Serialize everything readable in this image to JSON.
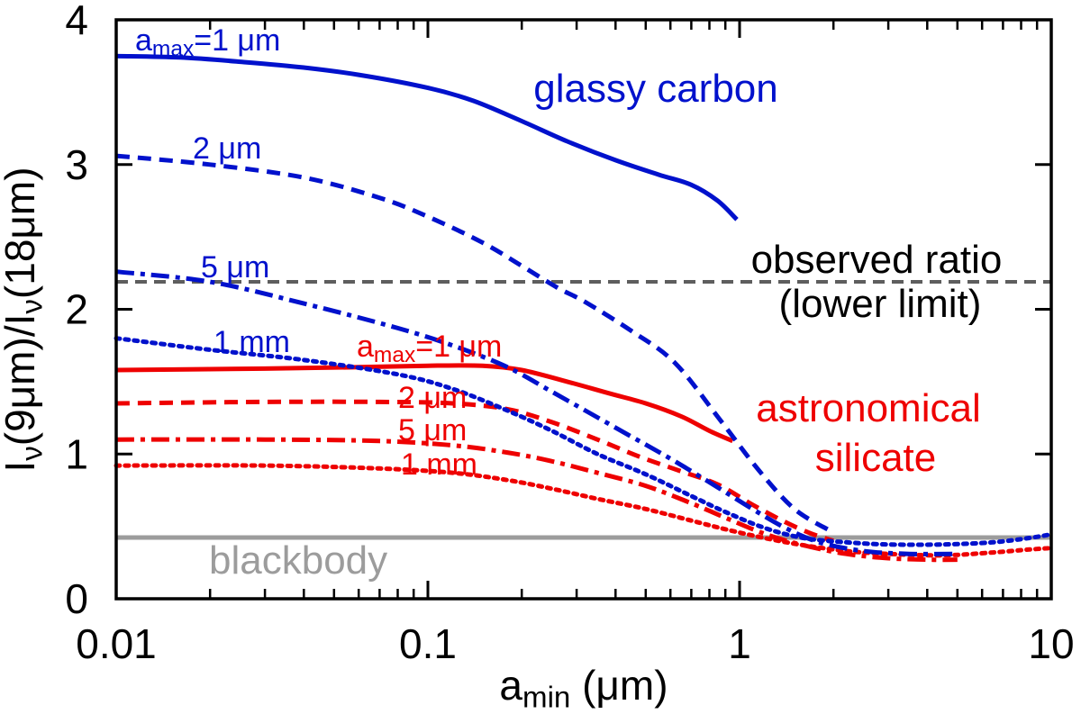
{
  "chart_data": {
    "type": "line",
    "title": "",
    "xlabel": "a_min (μm)",
    "ylabel": "I_ν(9μm)/I_ν(18μm)",
    "xlabel_segments": [
      {
        "t": "a"
      },
      {
        "t": "min",
        "sub": true
      },
      {
        "t": " (μm)"
      }
    ],
    "ylabel_segments": [
      {
        "t": "I"
      },
      {
        "t": "ν",
        "sub": true
      },
      {
        "t": "(9μm)/I"
      },
      {
        "t": "ν",
        "sub": true
      },
      {
        "t": "(18μm)"
      }
    ],
    "x_axis": {
      "scale": "log",
      "min": 0.01,
      "max": 10,
      "major_ticks": [
        0.01,
        0.1,
        1,
        10
      ],
      "major_tick_labels": [
        "0.01",
        "0.1",
        "1",
        "10"
      ],
      "minor_ticks_per_decade": [
        2,
        3,
        4,
        5,
        6,
        7,
        8,
        9
      ]
    },
    "y_axis": {
      "scale": "linear",
      "min": 0,
      "max": 4,
      "ticks": [
        0,
        1,
        2,
        3,
        4
      ],
      "tick_labels": [
        "0",
        "1",
        "2",
        "3",
        "4"
      ]
    },
    "grid": false,
    "legend_position": "inline-labels",
    "colors": {
      "glassy_carbon": "#0011cc",
      "astronomical_silicate": "#ee0000",
      "observed_line": "#5e5e5e",
      "blackbody_line": "#9c9c9c",
      "frame": "#000000",
      "text": "#000000"
    },
    "reference_lines": [
      {
        "id": "observed-ratio",
        "value": 2.19,
        "linestyle": "dashed",
        "color": "#5e5e5e",
        "label_lines": [
          "observed ratio",
          "(lower limit)"
        ],
        "label_color": "#000000"
      },
      {
        "id": "blackbody",
        "value": 0.423,
        "linestyle": "solid",
        "color": "#9c9c9c",
        "label_lines": [
          "blackbody"
        ],
        "label_color": "#9c9c9c"
      }
    ],
    "series": [
      {
        "id": "gc-amax-1um",
        "material": "glassy carbon",
        "amax": "1 μm",
        "color": "#0011cc",
        "linestyle": "solid",
        "label_segments": [
          {
            "t": "a"
          },
          {
            "t": "max",
            "sub": true
          },
          {
            "t": "=1 μm"
          }
        ],
        "points": [
          [
            0.01,
            3.75
          ],
          [
            0.016,
            3.74
          ],
          [
            0.025,
            3.71
          ],
          [
            0.04,
            3.67
          ],
          [
            0.06,
            3.62
          ],
          [
            0.1,
            3.53
          ],
          [
            0.14,
            3.44
          ],
          [
            0.2,
            3.3
          ],
          [
            0.28,
            3.16
          ],
          [
            0.4,
            3.03
          ],
          [
            0.55,
            2.93
          ],
          [
            0.7,
            2.86
          ],
          [
            0.85,
            2.75
          ],
          [
            0.98,
            2.62
          ]
        ]
      },
      {
        "id": "gc-amax-2um",
        "material": "glassy carbon",
        "amax": "2 μm",
        "color": "#0011cc",
        "linestyle": "dashed",
        "label_segments": [
          {
            "t": "2 μm"
          }
        ],
        "points": [
          [
            0.01,
            3.06
          ],
          [
            0.02,
            3.0
          ],
          [
            0.04,
            2.91
          ],
          [
            0.07,
            2.77
          ],
          [
            0.1,
            2.64
          ],
          [
            0.15,
            2.46
          ],
          [
            0.2,
            2.3
          ],
          [
            0.26,
            2.15
          ],
          [
            0.32,
            2.05
          ],
          [
            0.45,
            1.85
          ],
          [
            0.62,
            1.63
          ],
          [
            0.87,
            1.23
          ],
          [
            1.15,
            0.89
          ],
          [
            1.5,
            0.62
          ],
          [
            1.95,
            0.47
          ]
        ]
      },
      {
        "id": "gc-amax-5um",
        "material": "glassy carbon",
        "amax": "5 μm",
        "color": "#0011cc",
        "linestyle": "dashdot",
        "label_segments": [
          {
            "t": "5 μm"
          }
        ],
        "points": [
          [
            0.01,
            2.26
          ],
          [
            0.02,
            2.19
          ],
          [
            0.04,
            2.04
          ],
          [
            0.08,
            1.87
          ],
          [
            0.12,
            1.75
          ],
          [
            0.18,
            1.6
          ],
          [
            0.25,
            1.43
          ],
          [
            0.32,
            1.3
          ],
          [
            0.45,
            1.12
          ],
          [
            0.62,
            0.95
          ],
          [
            0.85,
            0.77
          ],
          [
            1.1,
            0.62
          ],
          [
            1.4,
            0.49
          ],
          [
            1.8,
            0.39
          ],
          [
            2.5,
            0.33
          ],
          [
            3.5,
            0.31
          ],
          [
            5.0,
            0.31
          ]
        ]
      },
      {
        "id": "gc-amax-1mm",
        "material": "glassy carbon",
        "amax": "1 mm",
        "color": "#0011cc",
        "linestyle": "dotted",
        "label_segments": [
          {
            "t": "1 mm"
          }
        ],
        "points": [
          [
            0.01,
            1.8
          ],
          [
            0.02,
            1.72
          ],
          [
            0.04,
            1.65
          ],
          [
            0.08,
            1.55
          ],
          [
            0.12,
            1.45
          ],
          [
            0.18,
            1.3
          ],
          [
            0.25,
            1.16
          ],
          [
            0.35,
            1.0
          ],
          [
            0.5,
            0.86
          ],
          [
            0.7,
            0.71
          ],
          [
            0.9,
            0.6
          ],
          [
            1.2,
            0.49
          ],
          [
            1.6,
            0.42
          ],
          [
            2.2,
            0.39
          ],
          [
            3.0,
            0.375
          ],
          [
            4.5,
            0.375
          ],
          [
            6.5,
            0.39
          ],
          [
            8.5,
            0.42
          ],
          [
            10.0,
            0.445
          ]
        ]
      },
      {
        "id": "sil-amax-1um",
        "material": "astronomical silicate",
        "amax": "1 μm",
        "color": "#ee0000",
        "linestyle": "solid",
        "label_segments": [
          {
            "t": "a"
          },
          {
            "t": "max",
            "sub": true
          },
          {
            "t": "=1 μm"
          }
        ],
        "points": [
          [
            0.01,
            1.58
          ],
          [
            0.03,
            1.59
          ],
          [
            0.06,
            1.6
          ],
          [
            0.1,
            1.61
          ],
          [
            0.15,
            1.61
          ],
          [
            0.2,
            1.58
          ],
          [
            0.28,
            1.5
          ],
          [
            0.38,
            1.42
          ],
          [
            0.5,
            1.35
          ],
          [
            0.65,
            1.26
          ],
          [
            0.8,
            1.16
          ],
          [
            0.95,
            1.09
          ]
        ]
      },
      {
        "id": "sil-amax-2um",
        "material": "astronomical silicate",
        "amax": "2 μm",
        "color": "#ee0000",
        "linestyle": "dashed",
        "label_segments": [
          {
            "t": "2 μm"
          }
        ],
        "points": [
          [
            0.01,
            1.35
          ],
          [
            0.03,
            1.36
          ],
          [
            0.07,
            1.36
          ],
          [
            0.12,
            1.35
          ],
          [
            0.18,
            1.31
          ],
          [
            0.25,
            1.22
          ],
          [
            0.35,
            1.1
          ],
          [
            0.48,
            0.98
          ],
          [
            0.65,
            0.88
          ],
          [
            0.85,
            0.79
          ],
          [
            1.1,
            0.65
          ],
          [
            1.4,
            0.53
          ],
          [
            1.7,
            0.45
          ],
          [
            2.0,
            0.4
          ]
        ]
      },
      {
        "id": "sil-amax-5um",
        "material": "astronomical silicate",
        "amax": "5 μm",
        "color": "#ee0000",
        "linestyle": "dashdot",
        "label_segments": [
          {
            "t": "5 μm"
          }
        ],
        "points": [
          [
            0.01,
            1.1
          ],
          [
            0.03,
            1.1
          ],
          [
            0.07,
            1.09
          ],
          [
            0.12,
            1.06
          ],
          [
            0.18,
            1.01
          ],
          [
            0.25,
            0.95
          ],
          [
            0.35,
            0.87
          ],
          [
            0.5,
            0.78
          ],
          [
            0.7,
            0.66
          ],
          [
            0.9,
            0.56
          ],
          [
            1.2,
            0.45
          ],
          [
            1.6,
            0.37
          ],
          [
            2.2,
            0.31
          ],
          [
            3.0,
            0.28
          ],
          [
            4.0,
            0.27
          ],
          [
            5.0,
            0.27
          ]
        ]
      },
      {
        "id": "sil-amax-1mm",
        "material": "astronomical silicate",
        "amax": "1 mm",
        "color": "#ee0000",
        "linestyle": "dotted",
        "label_segments": [
          {
            "t": "1 mm"
          }
        ],
        "points": [
          [
            0.01,
            0.92
          ],
          [
            0.03,
            0.92
          ],
          [
            0.07,
            0.9
          ],
          [
            0.12,
            0.87
          ],
          [
            0.18,
            0.82
          ],
          [
            0.25,
            0.76
          ],
          [
            0.35,
            0.69
          ],
          [
            0.5,
            0.62
          ],
          [
            0.7,
            0.54
          ],
          [
            0.9,
            0.48
          ],
          [
            1.2,
            0.42
          ],
          [
            1.6,
            0.37
          ],
          [
            2.2,
            0.33
          ],
          [
            3.0,
            0.31
          ],
          [
            4.5,
            0.3
          ],
          [
            6.5,
            0.32
          ],
          [
            8.5,
            0.34
          ],
          [
            10.0,
            0.35
          ]
        ]
      }
    ],
    "annotations": [
      {
        "id": "glassy-carbon-name",
        "text": "glassy carbon",
        "color": "#0011cc"
      },
      {
        "id": "astronomical-name",
        "text": "astronomical",
        "color": "#ee0000"
      },
      {
        "id": "silicate-name",
        "text": "silicate",
        "color": "#ee0000"
      },
      {
        "id": "observed-ratio-line1",
        "text": "observed ratio",
        "color": "#000000"
      },
      {
        "id": "observed-ratio-line2",
        "text": "(lower limit)",
        "color": "#000000"
      },
      {
        "id": "blackbody-label",
        "text": "blackbody",
        "color": "#9c9c9c"
      }
    ]
  }
}
